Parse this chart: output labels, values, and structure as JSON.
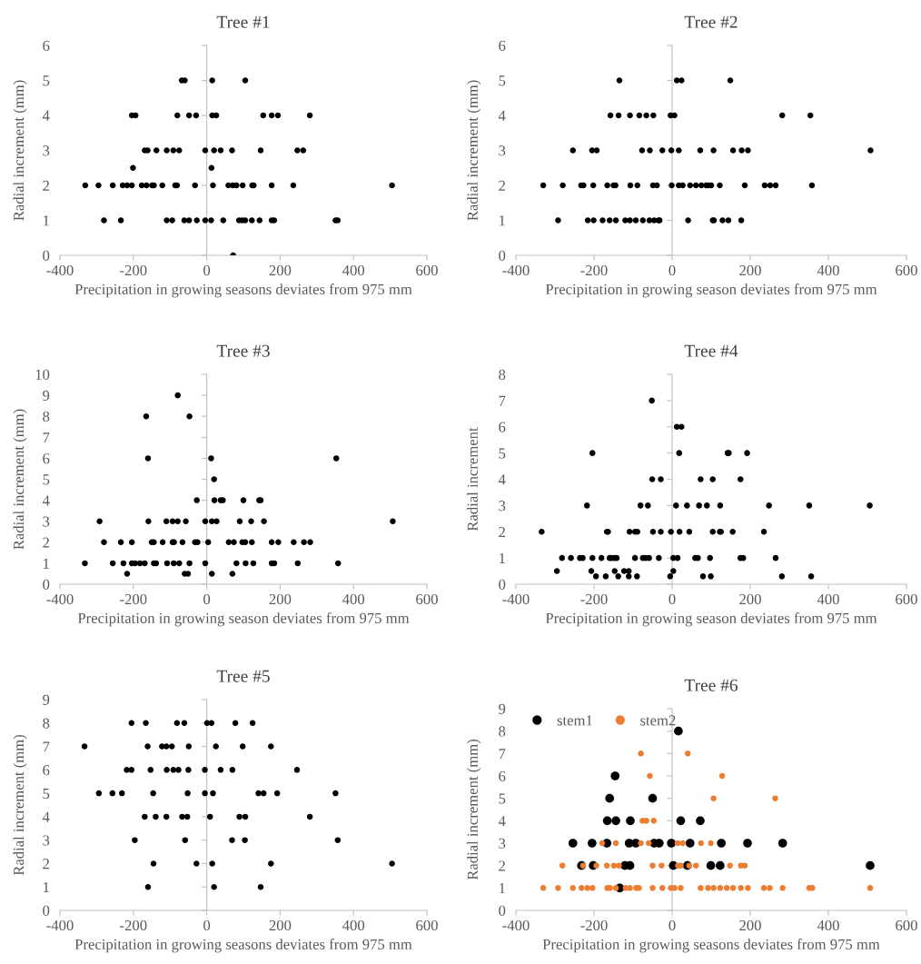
{
  "chart_data": [
    {
      "type": "scatter",
      "title": "Tree #1",
      "xlabel": "Precipitation in growing seasons deviates from 975 mm",
      "ylabel": "Radial increment (mm)",
      "xlim": [
        -400,
        600
      ],
      "xticks": [
        -400,
        -200,
        0,
        200,
        400,
        600
      ],
      "ylim": [
        0,
        6
      ],
      "yticks": [
        0,
        1,
        2,
        3,
        4,
        5,
        6
      ],
      "marker": "circle",
      "legend": false,
      "series": [
        {
          "color": "#000000",
          "x": [
            -68,
            -60,
            15,
            105,
            -204,
            -194,
            -80,
            -48,
            -29,
            15,
            26,
            154,
            177,
            194,
            281,
            -169,
            -161,
            -137,
            -109,
            -91,
            -75,
            -4,
            20,
            38,
            69,
            147,
            247,
            263,
            -201,
            13,
            -331,
            -295,
            -256,
            -229,
            -217,
            -204,
            -177,
            -164,
            -149,
            -144,
            -121,
            -86,
            -81,
            -32,
            17,
            59,
            71,
            81,
            98,
            124,
            128,
            177,
            236,
            505,
            -280,
            -234,
            -109,
            -94,
            -61,
            -48,
            -27,
            -4,
            12,
            45,
            88,
            97,
            105,
            123,
            144,
            177,
            184,
            351,
            357,
            72
          ],
          "values": [
            5,
            5,
            5,
            5,
            4,
            4,
            4,
            4,
            4,
            4,
            4,
            4,
            4,
            4,
            4,
            3,
            3,
            3,
            3,
            3,
            3,
            3,
            3,
            3,
            3,
            3,
            3,
            3,
            2.5,
            2.5,
            2,
            2,
            2,
            2,
            2,
            2,
            2,
            2,
            2,
            2,
            2,
            2,
            2,
            2,
            2,
            2,
            2,
            2,
            2,
            2,
            2,
            2,
            2,
            2,
            1,
            1,
            1,
            1,
            1,
            1,
            1,
            1,
            1,
            1,
            1,
            1,
            1,
            1,
            1,
            1,
            1,
            1,
            1,
            0
          ]
        }
      ]
    },
    {
      "type": "scatter",
      "title": "Tree #2",
      "xlabel": "Precipitation in growing season deviates from 975 mm",
      "ylabel": "Radial increment (mm)",
      "xlim": [
        -400,
        600
      ],
      "xticks": [
        -400,
        -200,
        0,
        200,
        400,
        600
      ],
      "ylim": [
        0,
        6
      ],
      "yticks": [
        0,
        1,
        2,
        3,
        4,
        5,
        6
      ],
      "marker": "circle",
      "legend": false,
      "series": [
        {
          "color": "#000000",
          "x": [
            -135,
            12,
            24,
            149,
            -158,
            -137,
            -108,
            -84,
            -66,
            -48,
            -4,
            6,
            282,
            354,
            -254,
            -205,
            -193,
            -77,
            -57,
            -25,
            -2,
            17,
            72,
            106,
            156,
            178,
            194,
            508,
            -330,
            -280,
            -233,
            -227,
            -202,
            -166,
            -150,
            -145,
            -107,
            -89,
            -49,
            -39,
            -1,
            17,
            27,
            46,
            61,
            75,
            87,
            92,
            100,
            122,
            186,
            237,
            251,
            265,
            358,
            -292,
            -216,
            -201,
            -178,
            -160,
            -144,
            -120,
            -108,
            -93,
            -75,
            -58,
            -46,
            -35,
            -32,
            41,
            104,
            107,
            129,
            144,
            177
          ],
          "values": [
            5,
            5,
            5,
            5,
            4,
            4,
            4,
            4,
            4,
            4,
            4,
            4,
            4,
            4,
            3,
            3,
            3,
            3,
            3,
            3,
            3,
            3,
            3,
            3,
            3,
            3,
            3,
            3,
            2,
            2,
            2,
            2,
            2,
            2,
            2,
            2,
            2,
            2,
            2,
            2,
            2,
            2,
            2,
            2,
            2,
            2,
            2,
            2,
            2,
            2,
            2,
            2,
            2,
            2,
            2,
            1,
            1,
            1,
            1,
            1,
            1,
            1,
            1,
            1,
            1,
            1,
            1,
            1,
            1,
            1,
            1,
            1,
            1,
            1,
            1
          ]
        }
      ]
    },
    {
      "type": "scatter",
      "title": "Tree #3",
      "xlabel": "Precipitation in growing season deviates from 975 mm",
      "ylabel": "Radial increment (mm)",
      "xlim": [
        -400,
        600
      ],
      "xticks": [
        -400,
        -200,
        0,
        200,
        400,
        600
      ],
      "ylim": [
        0,
        10
      ],
      "yticks": [
        0,
        1,
        2,
        3,
        4,
        5,
        6,
        7,
        8,
        9,
        10
      ],
      "marker": "circle",
      "legend": false,
      "series": [
        {
          "color": "#000000",
          "x": [
            -79,
            -165,
            -47,
            -160,
            12,
            353,
            20,
            -27,
            21,
            38,
            44,
            100,
            143,
            147,
            -292,
            -159,
            -110,
            -93,
            -79,
            -57,
            -4,
            14,
            27,
            90,
            121,
            156,
            507,
            -280,
            -234,
            -204,
            -150,
            -144,
            -120,
            -93,
            -89,
            -66,
            -32,
            -25,
            4,
            60,
            74,
            97,
            105,
            123,
            177,
            195,
            237,
            265,
            282,
            -332,
            -256,
            -227,
            -204,
            -195,
            -182,
            -169,
            -144,
            -138,
            -108,
            -90,
            -75,
            -47,
            -4,
            81,
            106,
            127,
            177,
            184,
            248,
            358,
            -217,
            -60,
            -51,
            14,
            70
          ],
          "values": [
            9,
            8,
            8,
            6,
            6,
            6,
            5,
            4,
            4,
            4,
            4,
            4,
            4,
            4,
            3,
            3,
            3,
            3,
            3,
            3,
            3,
            3,
            3,
            3,
            3,
            3,
            3,
            2,
            2,
            2,
            2,
            2,
            2,
            2,
            2,
            2,
            2,
            2,
            2,
            2,
            2,
            2,
            2,
            2,
            2,
            2,
            2,
            2,
            2,
            1,
            1,
            1,
            1,
            1,
            1,
            1,
            1,
            1,
            1,
            1,
            1,
            1,
            1,
            1,
            1,
            1,
            1,
            1,
            1,
            1,
            0.5,
            0.5,
            0.5,
            0.5,
            0.5
          ]
        }
      ]
    },
    {
      "type": "scatter",
      "title": "Tree #4",
      "xlabel": "Precipitation in growing season deviates from 975 mm",
      "ylabel": "Radial increment",
      "xlim": [
        -400,
        600
      ],
      "xticks": [
        -400,
        -200,
        0,
        200,
        400,
        600
      ],
      "ylim": [
        0,
        8
      ],
      "yticks": [
        0,
        1,
        2,
        3,
        4,
        5,
        6,
        7,
        8
      ],
      "marker": "circle",
      "legend": false,
      "series": [
        {
          "color": "#000000",
          "x": [
            -52,
            12,
            24,
            -204,
            18,
            142,
            145,
            192,
            -51,
            -29,
            73,
            104,
            175,
            -218,
            -81,
            -62,
            10,
            38,
            69,
            89,
            123,
            248,
            351,
            506,
            -334,
            -167,
            -164,
            -109,
            -95,
            -89,
            -49,
            -29,
            -3,
            19,
            44,
            104,
            122,
            125,
            155,
            235,
            -282,
            -259,
            -236,
            -229,
            -204,
            -181,
            -160,
            -155,
            -147,
            -142,
            -95,
            -75,
            -68,
            -59,
            -34,
            3,
            14,
            59,
            66,
            97,
            175,
            182,
            265,
            -295,
            -207,
            -147,
            -123,
            -111,
            3,
            -195,
            -170,
            -138,
            -111,
            -90,
            -5,
            79,
            99,
            281,
            356
          ],
          "values": [
            7,
            6,
            6,
            5,
            5,
            5,
            5,
            5,
            4,
            4,
            4,
            4,
            4,
            3,
            3,
            3,
            3,
            3,
            3,
            3,
            3,
            3,
            3,
            3,
            2,
            2,
            2,
            2,
            2,
            2,
            2,
            2,
            2,
            2,
            2,
            2,
            2,
            2,
            2,
            2,
            1,
            1,
            1,
            1,
            1,
            1,
            1,
            1,
            1,
            1,
            1,
            1,
            1,
            1,
            1,
            1,
            1,
            1,
            1,
            1,
            1,
            1,
            1,
            0.5,
            0.5,
            0.5,
            0.5,
            0.5,
            0.5,
            0.3,
            0.3,
            0.3,
            0.3,
            0.3,
            0.3,
            0.3,
            0.3,
            0.3,
            0.3
          ]
        }
      ]
    },
    {
      "type": "scatter",
      "title": "Tree #5",
      "xlabel": "Precipitation in growing seasons deviates from 975 mm",
      "ylabel": "Radial increment (mm)",
      "xlim": [
        -400,
        600
      ],
      "xticks": [
        -400,
        -200,
        0,
        200,
        400,
        600
      ],
      "ylim": [
        0,
        9
      ],
      "yticks": [
        0,
        1,
        2,
        3,
        4,
        5,
        6,
        7,
        8,
        9
      ],
      "marker": "circle",
      "legend": false,
      "series": [
        {
          "color": "#000000",
          "x": [
            -205,
            -166,
            -81,
            -61,
            1,
            13,
            78,
            125,
            -333,
            -161,
            -122,
            -110,
            -95,
            -49,
            25,
            98,
            175,
            -218,
            -205,
            -153,
            -109,
            -91,
            -77,
            -50,
            -5,
            38,
            70,
            246,
            -294,
            -257,
            -231,
            -146,
            -52,
            -5,
            17,
            141,
            155,
            192,
            351,
            -169,
            -139,
            -110,
            -67,
            -53,
            9,
            89,
            105,
            281,
            -196,
            -59,
            69,
            104,
            357,
            -145,
            -28,
            15,
            175,
            505,
            -160,
            20,
            147
          ],
          "values": [
            8,
            8,
            8,
            8,
            8,
            8,
            8,
            8,
            7,
            7,
            7,
            7,
            7,
            7,
            7,
            7,
            7,
            6,
            6,
            6,
            6,
            6,
            6,
            6,
            6,
            6,
            6,
            6,
            5,
            5,
            5,
            5,
            5,
            5,
            5,
            5,
            5,
            5,
            5,
            4,
            4,
            4,
            4,
            4,
            4,
            4,
            4,
            4,
            3,
            3,
            3,
            3,
            3,
            2,
            2,
            2,
            2,
            2,
            1,
            1,
            1
          ]
        }
      ]
    },
    {
      "type": "scatter",
      "title": "Tree #6",
      "xlabel": "Precipitation in growing seasons deviates from 975 mm",
      "ylabel": "Radial increment (mm)",
      "xlim": [
        -400,
        600
      ],
      "xticks": [
        -400,
        -200,
        0,
        200,
        400,
        600
      ],
      "ylim": [
        0,
        9
      ],
      "yticks": [
        0,
        1,
        2,
        3,
        4,
        5,
        6,
        7,
        8,
        9
      ],
      "marker": "circle",
      "legend": "top left",
      "series": [
        {
          "name": "stem1",
          "color": "#000000",
          "x": [
            16,
            -146,
            -160,
            -50,
            -166,
            -144,
            -107,
            22,
            72,
            -254,
            -205,
            -167,
            -110,
            -93,
            -46,
            -33,
            -2,
            46,
            126,
            193,
            283,
            -232,
            -202,
            -121,
            -108,
            3,
            39,
            99,
            123,
            507,
            -134
          ],
          "values": [
            8,
            6,
            5,
            5,
            4,
            4,
            4,
            4,
            4,
            3,
            3,
            3,
            3,
            3,
            3,
            3,
            3,
            3,
            3,
            3,
            3,
            2,
            2,
            2,
            2,
            2,
            2,
            2,
            2,
            2,
            1
          ]
        },
        {
          "name": "stem2",
          "color": "#ed7d31",
          "x": [
            -80,
            40,
            -57,
            128,
            106,
            264,
            -76,
            -66,
            -47,
            -179,
            -144,
            -80,
            -60,
            14,
            27,
            74,
            99,
            -281,
            -228,
            -194,
            -167,
            -149,
            -136,
            -50,
            -27,
            15,
            22,
            44,
            61,
            148,
            176,
            186,
            -330,
            -292,
            -254,
            -232,
            -217,
            -204,
            -166,
            -159,
            -144,
            -119,
            -108,
            -92,
            -85,
            -50,
            -25,
            -3,
            6,
            22,
            73,
            92,
            106,
            123,
            140,
            156,
            176,
            194,
            235,
            250,
            283,
            351,
            359,
            507
          ],
          "values": [
            7,
            7,
            6,
            6,
            5,
            5,
            4,
            4,
            4,
            3,
            3,
            3,
            3,
            3,
            3,
            3,
            3,
            2,
            2,
            2,
            2,
            2,
            2,
            2,
            2,
            2,
            2,
            2,
            2,
            2,
            2,
            2,
            1,
            1,
            1,
            1,
            1,
            1,
            1,
            1,
            1,
            1,
            1,
            1,
            1,
            1,
            1,
            1,
            1,
            1,
            1,
            1,
            1,
            1,
            1,
            1,
            1,
            1,
            1,
            1,
            1,
            1,
            1,
            1
          ]
        }
      ]
    }
  ]
}
